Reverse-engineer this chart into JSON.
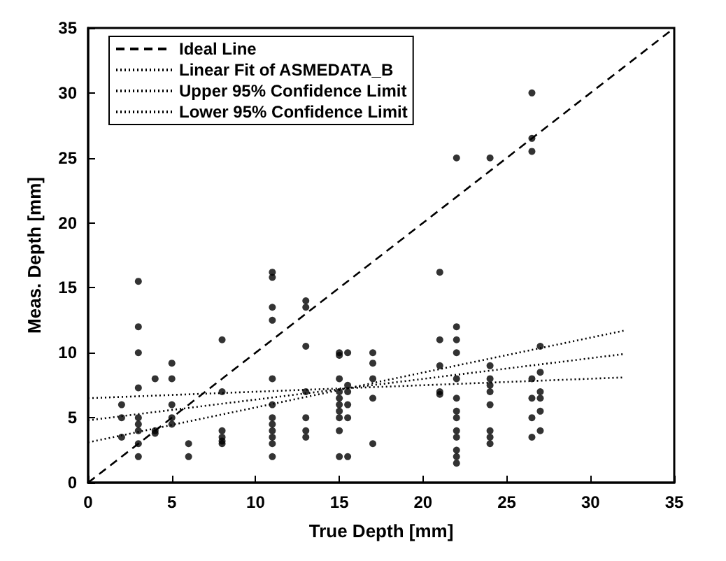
{
  "chart_data": {
    "type": "scatter",
    "xlabel": "True Depth [mm]",
    "ylabel": "Meas. Depth [mm]",
    "xlim": [
      0,
      35
    ],
    "ylim": [
      0,
      35
    ],
    "xticks": [
      0,
      5,
      10,
      15,
      20,
      25,
      30,
      35
    ],
    "yticks": [
      0,
      5,
      10,
      15,
      20,
      25,
      30,
      35
    ],
    "grid": false,
    "legend": "top left",
    "series": [
      {
        "color": "#000000",
        "marker": "circle",
        "x": [
          2,
          2,
          2,
          3,
          3,
          3,
          3,
          3,
          3,
          3,
          3,
          3,
          4,
          4,
          4,
          5,
          5,
          5,
          5,
          5,
          6,
          6,
          8,
          8,
          8,
          8,
          8,
          8,
          11,
          11,
          11,
          11,
          11,
          11,
          11,
          11,
          11,
          11,
          11,
          11,
          13,
          13,
          13,
          13,
          13,
          13,
          13,
          15,
          15,
          15,
          15,
          15,
          15,
          15,
          15,
          15,
          15,
          15.5,
          15.5,
          15.5,
          15.5,
          15.5,
          15.5,
          17,
          17,
          17,
          17,
          17,
          21,
          21,
          21,
          21,
          21,
          22,
          22,
          22,
          22,
          22,
          22,
          22,
          22,
          22,
          22,
          22,
          22,
          22,
          24,
          24,
          24,
          24,
          24,
          24,
          24,
          24,
          24,
          26.5,
          26.5,
          26.5,
          26.5,
          26.5,
          26.5,
          26.5,
          27,
          27,
          27,
          27,
          27,
          27
        ],
        "values": [
          3.5,
          5,
          6,
          15.5,
          12,
          10,
          7.3,
          5,
          4.5,
          4,
          3,
          2,
          4,
          3.8,
          8,
          9.2,
          8,
          6,
          5,
          4.5,
          3,
          2,
          11,
          7,
          4,
          3.5,
          3.2,
          3,
          16.2,
          15.8,
          13.5,
          12.5,
          8,
          6,
          5,
          4.5,
          4,
          3.5,
          3,
          2,
          14,
          13.5,
          10.5,
          7,
          5,
          4,
          3.5,
          10,
          9.8,
          8,
          7,
          6.5,
          6,
          5.5,
          5,
          4,
          2,
          10,
          7.5,
          7,
          6,
          5,
          2,
          10,
          9.2,
          8,
          6.5,
          3,
          16.2,
          11,
          9,
          7,
          6.8,
          25,
          12,
          11,
          10,
          8,
          6.5,
          5.5,
          5,
          4,
          3.5,
          2.5,
          2,
          1.5,
          25,
          9,
          8,
          7.5,
          7,
          6,
          4,
          3.5,
          3,
          30,
          26.5,
          25.5,
          8,
          6.5,
          5,
          3.5,
          10.5,
          8.5,
          7,
          6.5,
          5.5,
          4
        ]
      },
      {
        "type": "line",
        "name": "Ideal Line",
        "color": "#000000",
        "line_style": "dashed",
        "x": [
          0,
          35
        ],
        "values": [
          0,
          35
        ]
      },
      {
        "type": "line",
        "name": "Linear Fit of ASMEDATA_B",
        "color": "#000000",
        "line_style": "dotted",
        "x": [
          0,
          32
        ],
        "values": [
          4.8,
          9.9
        ]
      },
      {
        "type": "line",
        "name": "Upper 95% Confidence Limit",
        "color": "#000000",
        "line_style": "dotted",
        "x": [
          0,
          32
        ],
        "values": [
          3.1,
          11.7
        ]
      },
      {
        "type": "line",
        "name": "Lower 95% Confidence Limit",
        "color": "#000000",
        "line_style": "dotted",
        "x": [
          0,
          32
        ],
        "values": [
          6.5,
          8.1
        ]
      }
    ]
  }
}
